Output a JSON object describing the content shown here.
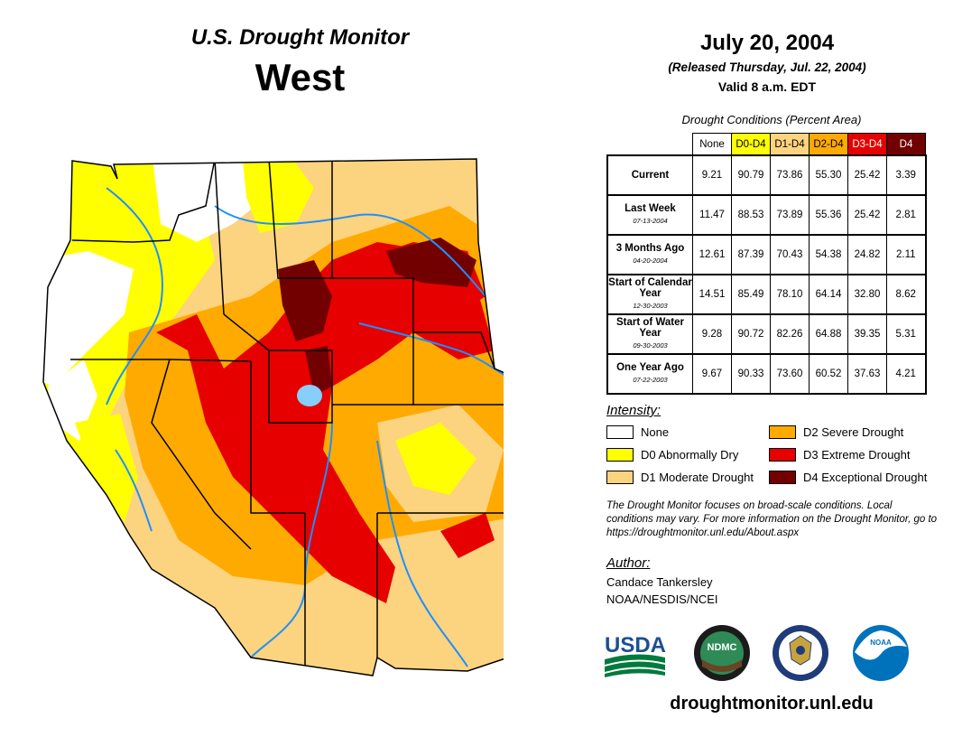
{
  "header": {
    "brand": "U.S. Drought Monitor",
    "region": "West",
    "date": "July 20, 2004",
    "released": "(Released Thursday, Jul. 22, 2004)",
    "valid": "Valid 8 a.m. EDT"
  },
  "table": {
    "caption": "Drought Conditions (Percent Area)",
    "columns": [
      {
        "label": "None",
        "color": "#ffffff",
        "text": "#000000"
      },
      {
        "label": "D0-D4",
        "color": "#ffff00",
        "text": "#000000"
      },
      {
        "label": "D1-D4",
        "color": "#fcd37f",
        "text": "#000000"
      },
      {
        "label": "D2-D4",
        "color": "#ffaa00",
        "text": "#000000"
      },
      {
        "label": "D3-D4",
        "color": "#e60000",
        "text": "#ffffff"
      },
      {
        "label": "D4",
        "color": "#730000",
        "text": "#ffffff"
      }
    ],
    "rows": [
      {
        "label": "Current",
        "sublabel": "",
        "values": [
          "9.21",
          "90.79",
          "73.86",
          "55.30",
          "25.42",
          "3.39"
        ]
      },
      {
        "label": "Last Week",
        "sublabel": "07-13-2004",
        "values": [
          "11.47",
          "88.53",
          "73.89",
          "55.36",
          "25.42",
          "2.81"
        ]
      },
      {
        "label": "3 Months Ago",
        "sublabel": "04-20-2004",
        "values": [
          "12.61",
          "87.39",
          "70.43",
          "54.38",
          "24.82",
          "2.11"
        ]
      },
      {
        "label": "Start of Calendar Year",
        "sublabel": "12-30-2003",
        "values": [
          "14.51",
          "85.49",
          "78.10",
          "64.14",
          "32.80",
          "8.62"
        ]
      },
      {
        "label": "Start of Water Year",
        "sublabel": "09-30-2003",
        "values": [
          "9.28",
          "90.72",
          "82.26",
          "64.88",
          "39.35",
          "5.31"
        ]
      },
      {
        "label": "One Year Ago",
        "sublabel": "07-22-2003",
        "values": [
          "9.67",
          "90.33",
          "73.60",
          "60.52",
          "37.63",
          "4.21"
        ]
      }
    ]
  },
  "legend": {
    "title": "Intensity:",
    "items": [
      {
        "label": "None",
        "color": "#ffffff"
      },
      {
        "label": "D0 Abnormally Dry",
        "color": "#ffff00"
      },
      {
        "label": "D1 Moderate Drought",
        "color": "#fcd37f"
      },
      {
        "label": "D2 Severe Drought",
        "color": "#ffaa00"
      },
      {
        "label": "D3 Extreme Drought",
        "color": "#e60000"
      },
      {
        "label": "D4 Exceptional Drought",
        "color": "#730000"
      }
    ]
  },
  "note": "The Drought Monitor focuses on broad-scale conditions. Local conditions may vary. For more information on the Drought Monitor, go to https://droughtmonitor.unl.edu/About.aspx",
  "author": {
    "title": "Author:",
    "name": "Candace Tankersley",
    "org": "NOAA/NESDIS/NCEI"
  },
  "logos": {
    "usda": "USDA",
    "ndmc": "NDMC",
    "noaa": "NOAA"
  },
  "website": "droughtmonitor.unl.edu",
  "map_colors": {
    "none": "#ffffff",
    "d0": "#ffff00",
    "d1": "#fcd37f",
    "d2": "#ffaa00",
    "d3": "#e60000",
    "d4": "#730000",
    "water": "#1e90ff",
    "lake": "#87cefa"
  }
}
